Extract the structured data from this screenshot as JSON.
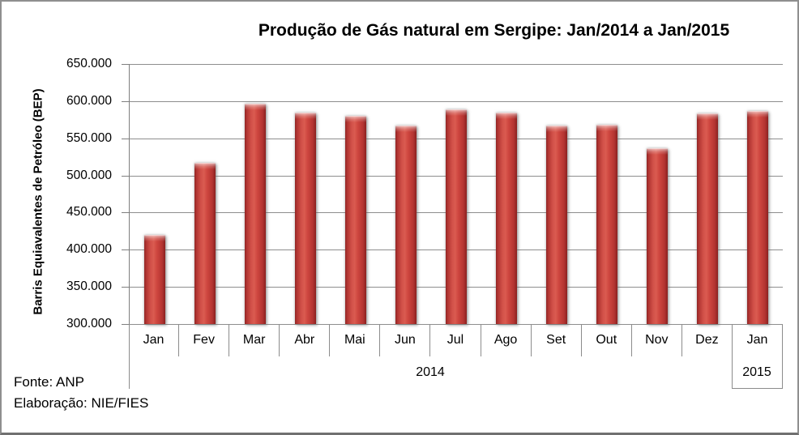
{
  "chart_data": {
    "type": "bar",
    "title": "Produção de Gás natural em Sergipe: Jan/2014 a Jan/2015",
    "ylabel": "Barris Equiavalentes de Petróleo (BEP)",
    "xlabel": "",
    "categories": [
      "Jan",
      "Fev",
      "Mar",
      "Abr",
      "Mai",
      "Jun",
      "Jul",
      "Ago",
      "Set",
      "Out",
      "Nov",
      "Dez",
      "Jan"
    ],
    "category_groups": [
      {
        "label": "2014",
        "span": 12
      },
      {
        "label": "2015",
        "span": 1
      }
    ],
    "values": [
      420000,
      517000,
      597000,
      585000,
      580000,
      567000,
      589000,
      585000,
      567000,
      568000,
      537000,
      584000,
      587000
    ],
    "ylim": [
      300000,
      650000
    ],
    "ytick_step": 50000,
    "ytick_labels": [
      "300.000",
      "350.000",
      "400.000",
      "450.000",
      "500.000",
      "550.000",
      "600.000",
      "650.000"
    ],
    "grid": true,
    "legend": "none",
    "bar_color": "#C0392B",
    "bar_edge_color": "#8A2120",
    "grid_color": "#8E8E8E",
    "axis_color": "#7F7F7F"
  },
  "footer": {
    "source": "Fonte: ANP",
    "elaboration": "Elaboração: NIE/FIES"
  }
}
